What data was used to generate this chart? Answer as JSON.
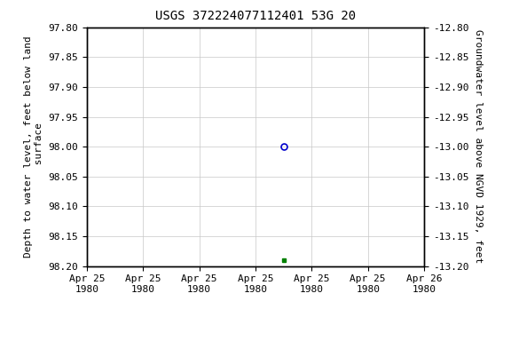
{
  "title": "USGS 372224077112401 53G 20",
  "ylabel_left": "Depth to water level, feet below land\n surface",
  "ylabel_right": "Groundwater level above NGVD 1929, feet",
  "ylim_left": [
    97.8,
    98.2
  ],
  "ylim_right": [
    -12.8,
    -13.2
  ],
  "yticks_left": [
    97.8,
    97.85,
    97.9,
    97.95,
    98.0,
    98.05,
    98.1,
    98.15,
    98.2
  ],
  "yticks_right": [
    -12.8,
    -12.85,
    -12.9,
    -12.95,
    -13.0,
    -13.05,
    -13.1,
    -13.15,
    -13.2
  ],
  "point_open_x": 3.5,
  "point_open_y": 98.0,
  "point_filled_x": 3.5,
  "point_filled_y": 98.19,
  "open_marker_color": "#0000cc",
  "filled_marker_color": "#008000",
  "background_color": "#ffffff",
  "grid_color": "#c8c8c8",
  "legend_color": "#008000",
  "title_fontsize": 10,
  "label_fontsize": 8,
  "tick_fontsize": 8,
  "xlim": [
    0,
    6
  ],
  "xtick_positions": [
    0,
    1,
    2,
    3,
    4,
    5,
    6
  ],
  "xtick_labels": [
    "Apr 25\n1980",
    "Apr 25\n1980",
    "Apr 25\n1980",
    "Apr 25\n1980",
    "Apr 25\n1980",
    "Apr 25\n1980",
    "Apr 26\n1980"
  ]
}
